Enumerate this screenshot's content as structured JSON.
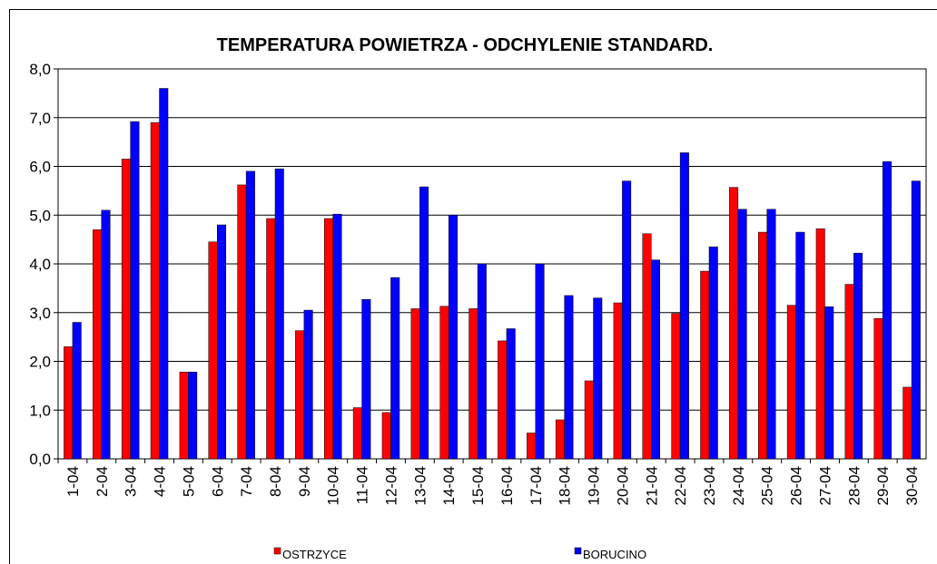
{
  "chart_data": {
    "type": "bar",
    "title": "TEMPERATURA POWIETRZA - ODCHYLENIE STANDARD.",
    "categories": [
      "1-04",
      "2-04",
      "3-04",
      "4-04",
      "5-04",
      "6-04",
      "7-04",
      "8-04",
      "9-04",
      "10-04",
      "11-04",
      "12-04",
      "13-04",
      "14-04",
      "15-04",
      "16-04",
      "17-04",
      "18-04",
      "19-04",
      "20-04",
      "21-04",
      "22-04",
      "23-04",
      "24-04",
      "25-04",
      "26-04",
      "27-04",
      "28-04",
      "29-04",
      "30-04"
    ],
    "series": [
      {
        "name": "OSTRZYCE",
        "color": "#ff0000",
        "values": [
          2.3,
          4.7,
          6.15,
          6.9,
          1.78,
          4.45,
          5.62,
          4.93,
          2.63,
          4.93,
          1.05,
          0.95,
          3.08,
          3.13,
          3.08,
          2.42,
          0.53,
          0.8,
          1.6,
          3.2,
          4.62,
          2.98,
          3.85,
          5.57,
          4.65,
          3.15,
          4.72,
          3.58,
          2.88,
          1.47
        ]
      },
      {
        "name": "BORUCINO",
        "color": "#0000ff",
        "values": [
          2.8,
          5.1,
          6.92,
          7.6,
          1.78,
          4.8,
          5.9,
          5.95,
          3.05,
          5.02,
          3.27,
          3.72,
          5.58,
          5.0,
          4.0,
          2.67,
          4.0,
          3.35,
          3.3,
          5.7,
          4.08,
          6.28,
          4.35,
          5.12,
          5.12,
          4.65,
          3.12,
          4.22,
          6.1,
          5.7
        ]
      }
    ],
    "ylim": [
      0,
      8
    ],
    "yticks": [
      {
        "value": 0,
        "label": "0,0"
      },
      {
        "value": 1,
        "label": "1,0"
      },
      {
        "value": 2,
        "label": "2,0"
      },
      {
        "value": 3,
        "label": "3,0"
      },
      {
        "value": 4,
        "label": "4,0"
      },
      {
        "value": 5,
        "label": "5,0"
      },
      {
        "value": 6,
        "label": "6,0"
      },
      {
        "value": 7,
        "label": "7,0"
      },
      {
        "value": 8,
        "label": "8,0"
      }
    ],
    "grid": true
  }
}
